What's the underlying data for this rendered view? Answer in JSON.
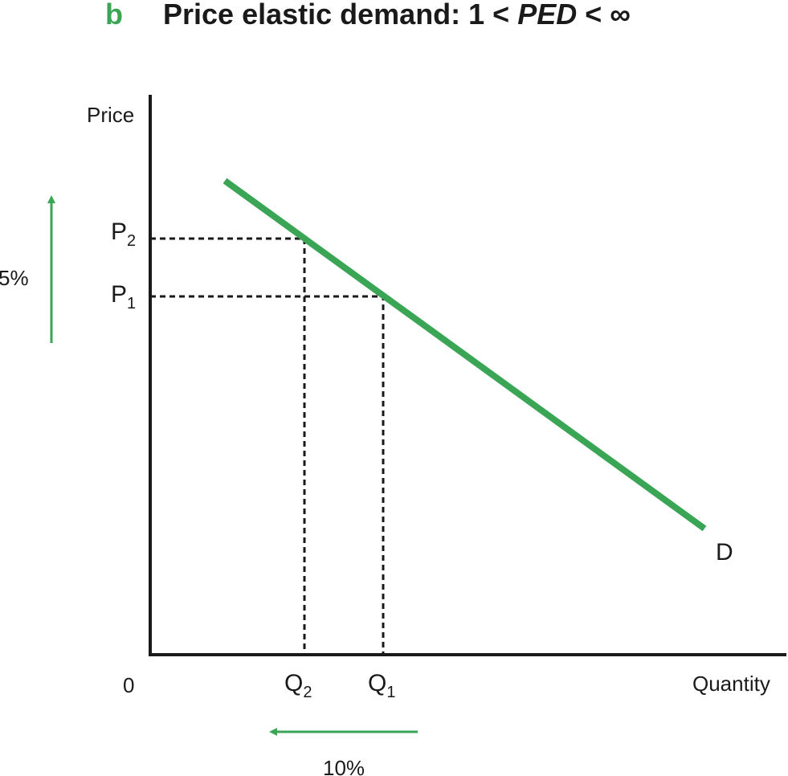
{
  "title": {
    "letter": "b",
    "text": "Price elastic demand: 1 < ",
    "italic": "PED",
    "end": " < ∞"
  },
  "axes": {
    "y_label": "Price",
    "x_label": "Quantity",
    "origin": "0"
  },
  "price_labels": [
    {
      "main": "P",
      "sub": "2"
    },
    {
      "main": "P",
      "sub": "1"
    }
  ],
  "quantity_labels": [
    {
      "main": "Q",
      "sub": "2"
    },
    {
      "main": "Q",
      "sub": "1"
    }
  ],
  "curve_label": "D",
  "price_change": "5%",
  "quantity_change": "10%"
}
